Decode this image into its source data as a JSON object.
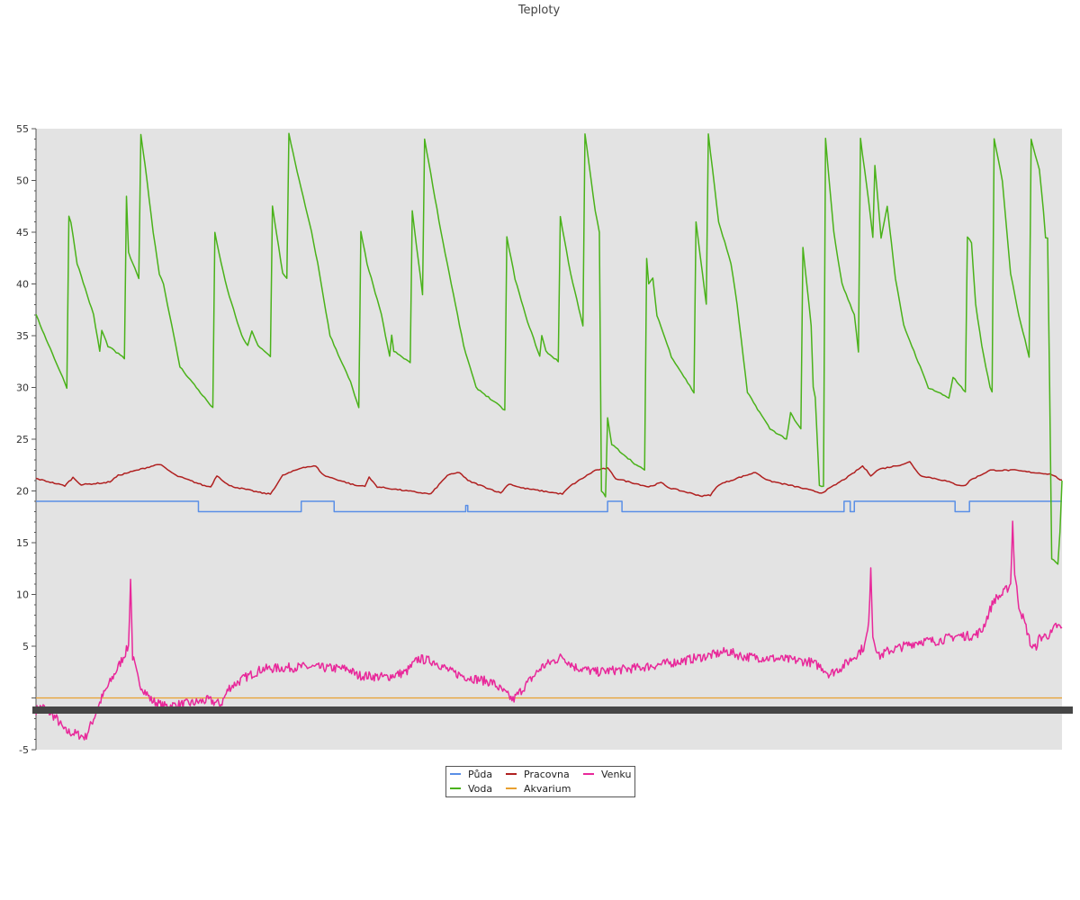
{
  "chart_data": {
    "type": "line",
    "title": "Teploty",
    "xlabel": "",
    "ylabel": "",
    "ylim": [
      -5,
      55
    ],
    "yticks": [
      -5,
      5,
      10,
      15,
      20,
      25,
      30,
      35,
      40,
      45,
      50,
      55
    ],
    "grid": false,
    "legend_position": "bottom-center",
    "x_points": 500,
    "series": [
      {
        "name": "Půda",
        "color": "#5a8fe6",
        "shape": "step",
        "key": [
          [
            0,
            19
          ],
          [
            78,
            19
          ],
          [
            79,
            18
          ],
          [
            128,
            18
          ],
          [
            129,
            19
          ],
          [
            144,
            19
          ],
          [
            145,
            18
          ],
          [
            208,
            18
          ],
          [
            209,
            18.6
          ],
          [
            210,
            18
          ],
          [
            277,
            18
          ],
          [
            278,
            19
          ],
          [
            284,
            19
          ],
          [
            285,
            18
          ],
          [
            392,
            18
          ],
          [
            393,
            19
          ],
          [
            395,
            19
          ],
          [
            396,
            18
          ],
          [
            397,
            18
          ],
          [
            398,
            19
          ],
          [
            446,
            19
          ],
          [
            447,
            18
          ],
          [
            453,
            18
          ],
          [
            454,
            19
          ],
          [
            499,
            19
          ]
        ]
      },
      {
        "name": "Voda",
        "color": "#4ab21a",
        "shape": "sawtooth",
        "key": [
          [
            0,
            37
          ],
          [
            15,
            30
          ],
          [
            16,
            46.5
          ],
          [
            17,
            46
          ],
          [
            20,
            42
          ],
          [
            28,
            37
          ],
          [
            31,
            33.5
          ],
          [
            32,
            35.5
          ],
          [
            35,
            34
          ],
          [
            43,
            32.8
          ],
          [
            44,
            48.5
          ],
          [
            45,
            43
          ],
          [
            50,
            40.5
          ],
          [
            51,
            54.5
          ],
          [
            54,
            50
          ],
          [
            57,
            45
          ],
          [
            60,
            41
          ],
          [
            62,
            40
          ],
          [
            65,
            37
          ],
          [
            70,
            32
          ],
          [
            86,
            28
          ],
          [
            87,
            45
          ],
          [
            90,
            42
          ],
          [
            93,
            39.5
          ],
          [
            100,
            35
          ],
          [
            103,
            34
          ],
          [
            105,
            35.5
          ],
          [
            108,
            34
          ],
          [
            114,
            33
          ],
          [
            115,
            47.5
          ],
          [
            120,
            41
          ],
          [
            122,
            40.5
          ],
          [
            123,
            54.5
          ],
          [
            128,
            50
          ],
          [
            134,
            45
          ],
          [
            137,
            42
          ],
          [
            143,
            35
          ],
          [
            153,
            30.5
          ],
          [
            157,
            28
          ],
          [
            158,
            45
          ],
          [
            161,
            42
          ],
          [
            168,
            37
          ],
          [
            172,
            33
          ],
          [
            173,
            35
          ],
          [
            174,
            33.5
          ],
          [
            182,
            32.4
          ],
          [
            183,
            47
          ],
          [
            188,
            39
          ],
          [
            189,
            54
          ],
          [
            197,
            45
          ],
          [
            200,
            42
          ],
          [
            208,
            34
          ],
          [
            214,
            30
          ],
          [
            228,
            27.8
          ],
          [
            229,
            44.5
          ],
          [
            233,
            40.5
          ],
          [
            238,
            37
          ],
          [
            245,
            33
          ],
          [
            246,
            35
          ],
          [
            248,
            33.5
          ],
          [
            254,
            32.5
          ],
          [
            255,
            46.5
          ],
          [
            260,
            41
          ],
          [
            266,
            36
          ],
          [
            267,
            54.5
          ],
          [
            272,
            47
          ],
          [
            274,
            45
          ],
          [
            275,
            20
          ],
          [
            277,
            19.5
          ],
          [
            278,
            27
          ],
          [
            280,
            24.5
          ],
          [
            292,
            22.5
          ],
          [
            296,
            22
          ],
          [
            297,
            42.5
          ],
          [
            298,
            40
          ],
          [
            300,
            40.5
          ],
          [
            302,
            37
          ],
          [
            309,
            33
          ],
          [
            320,
            29.5
          ],
          [
            321,
            46
          ],
          [
            326,
            38
          ],
          [
            327,
            54.5
          ],
          [
            332,
            46
          ],
          [
            338,
            42
          ],
          [
            341,
            38
          ],
          [
            346,
            29.5
          ],
          [
            357,
            26
          ],
          [
            365,
            25
          ],
          [
            367,
            27.5
          ],
          [
            370,
            26.5
          ],
          [
            372,
            26
          ],
          [
            373,
            43.5
          ],
          [
            377,
            36
          ],
          [
            378,
            30
          ],
          [
            379,
            29
          ],
          [
            381,
            20.5
          ],
          [
            383,
            20.5
          ],
          [
            384,
            54
          ],
          [
            388,
            45
          ],
          [
            392,
            40
          ],
          [
            398,
            37
          ],
          [
            400,
            33.5
          ],
          [
            401,
            54
          ],
          [
            405,
            48
          ],
          [
            407,
            44.5
          ],
          [
            408,
            51.5
          ],
          [
            411,
            44.5
          ],
          [
            414,
            47.5
          ],
          [
            416,
            44
          ],
          [
            418,
            40.5
          ],
          [
            422,
            36
          ],
          [
            430,
            32
          ],
          [
            434,
            30
          ],
          [
            444,
            29
          ],
          [
            446,
            31
          ],
          [
            452,
            29.5
          ],
          [
            453,
            44.5
          ],
          [
            455,
            44
          ],
          [
            457,
            38
          ],
          [
            460,
            34
          ],
          [
            464,
            30
          ],
          [
            465,
            29.5
          ],
          [
            466,
            54
          ],
          [
            470,
            50
          ],
          [
            474,
            41
          ],
          [
            478,
            37
          ],
          [
            483,
            33
          ],
          [
            484,
            54
          ],
          [
            488,
            51
          ],
          [
            490,
            47
          ],
          [
            491,
            44.5
          ],
          [
            492,
            44.5
          ],
          [
            493,
            30
          ],
          [
            494,
            13.5
          ],
          [
            497,
            13
          ],
          [
            498,
            16
          ],
          [
            499,
            21
          ]
        ]
      },
      {
        "name": "Pracovna",
        "color": "#b02020",
        "shape": "smooth",
        "key": [
          [
            0,
            21.2
          ],
          [
            14,
            20.5
          ],
          [
            18,
            21.3
          ],
          [
            22,
            20.6
          ],
          [
            34,
            20.8
          ],
          [
            36,
            20.9
          ],
          [
            40,
            21.5
          ],
          [
            60,
            22.6
          ],
          [
            68,
            21.5
          ],
          [
            82,
            20.5
          ],
          [
            85,
            20.4
          ],
          [
            88,
            21.5
          ],
          [
            94,
            20.5
          ],
          [
            110,
            19.8
          ],
          [
            114,
            19.7
          ],
          [
            120,
            21.5
          ],
          [
            130,
            22.3
          ],
          [
            136,
            22.4
          ],
          [
            140,
            21.5
          ],
          [
            156,
            20.5
          ],
          [
            160,
            20.5
          ],
          [
            162,
            21.3
          ],
          [
            166,
            20.4
          ],
          [
            188,
            19.8
          ],
          [
            192,
            19.7
          ],
          [
            200,
            21.5
          ],
          [
            206,
            21.8
          ],
          [
            210,
            21
          ],
          [
            226,
            19.8
          ],
          [
            230,
            20.7
          ],
          [
            236,
            20.3
          ],
          [
            256,
            19.7
          ],
          [
            260,
            20.5
          ],
          [
            272,
            22
          ],
          [
            278,
            22.2
          ],
          [
            282,
            21.2
          ],
          [
            298,
            20.4
          ],
          [
            304,
            20.8
          ],
          [
            308,
            20.3
          ],
          [
            324,
            19.5
          ],
          [
            328,
            19.6
          ],
          [
            332,
            20.6
          ],
          [
            342,
            21.3
          ],
          [
            350,
            21.8
          ],
          [
            356,
            21
          ],
          [
            370,
            20.4
          ],
          [
            382,
            19.8
          ],
          [
            388,
            20.5
          ],
          [
            396,
            21.5
          ],
          [
            402,
            22.4
          ],
          [
            406,
            21.5
          ],
          [
            410,
            22.1
          ],
          [
            420,
            22.5
          ],
          [
            425,
            22.8
          ],
          [
            430,
            21.5
          ],
          [
            442,
            21
          ],
          [
            448,
            20.6
          ],
          [
            452,
            20.5
          ],
          [
            454,
            21
          ],
          [
            464,
            22
          ],
          [
            476,
            22
          ],
          [
            484,
            21.8
          ],
          [
            490,
            21.7
          ],
          [
            494,
            21.6
          ],
          [
            499,
            21
          ]
        ]
      },
      {
        "name": "Akvarium",
        "color": "#e8a030",
        "shape": "flat",
        "key": [
          [
            0,
            0
          ],
          [
            499,
            0
          ]
        ]
      },
      {
        "name": "Venku",
        "color": "#e8289a",
        "shape": "noisy",
        "key": [
          [
            0,
            -1.2
          ],
          [
            3,
            -0.8
          ],
          [
            10,
            -2.0
          ],
          [
            14,
            -3.2
          ],
          [
            20,
            -3.5
          ],
          [
            24,
            -3.8
          ],
          [
            28,
            -2.0
          ],
          [
            32,
            0
          ],
          [
            40,
            3.0
          ],
          [
            45,
            5.0
          ],
          [
            46,
            11.5
          ],
          [
            47,
            4.0
          ],
          [
            50,
            1.5
          ],
          [
            56,
            -0.2
          ],
          [
            62,
            -0.8
          ],
          [
            76,
            -0.5
          ],
          [
            84,
            -0.2
          ],
          [
            88,
            -0.5
          ],
          [
            90,
            -0.6
          ],
          [
            94,
            1.0
          ],
          [
            102,
            2.0
          ],
          [
            110,
            2.8
          ],
          [
            130,
            3.0
          ],
          [
            152,
            2.8
          ],
          [
            156,
            2.2
          ],
          [
            170,
            2.0
          ],
          [
            180,
            2.5
          ],
          [
            186,
            3.8
          ],
          [
            194,
            3.5
          ],
          [
            202,
            2.5
          ],
          [
            210,
            2.0
          ],
          [
            222,
            1.5
          ],
          [
            232,
            -0.2
          ],
          [
            238,
            1.2
          ],
          [
            246,
            3.0
          ],
          [
            256,
            4.0
          ],
          [
            262,
            3.0
          ],
          [
            272,
            2.5
          ],
          [
            288,
            2.8
          ],
          [
            296,
            3.0
          ],
          [
            312,
            3.5
          ],
          [
            330,
            4.2
          ],
          [
            336,
            4.5
          ],
          [
            344,
            4.0
          ],
          [
            360,
            3.8
          ],
          [
            376,
            3.5
          ],
          [
            382,
            3.0
          ],
          [
            386,
            2.3
          ],
          [
            392,
            3.0
          ],
          [
            398,
            4.0
          ],
          [
            403,
            5.0
          ],
          [
            405,
            7.0
          ],
          [
            406,
            12.8
          ],
          [
            407,
            6.0
          ],
          [
            410,
            4.0
          ],
          [
            414,
            4.5
          ],
          [
            422,
            5.0
          ],
          [
            430,
            5.5
          ],
          [
            438,
            5.5
          ],
          [
            448,
            6.0
          ],
          [
            456,
            6.0
          ],
          [
            460,
            6.5
          ],
          [
            466,
            9.5
          ],
          [
            470,
            10.0
          ],
          [
            474,
            11.0
          ],
          [
            475,
            17.0
          ],
          [
            476,
            12.0
          ],
          [
            478,
            9.0
          ],
          [
            482,
            6.5
          ],
          [
            484,
            5.0
          ],
          [
            486,
            4.8
          ],
          [
            488,
            5.8
          ],
          [
            494,
            6.2
          ],
          [
            496,
            7.0
          ],
          [
            499,
            6.7
          ]
        ]
      }
    ]
  }
}
